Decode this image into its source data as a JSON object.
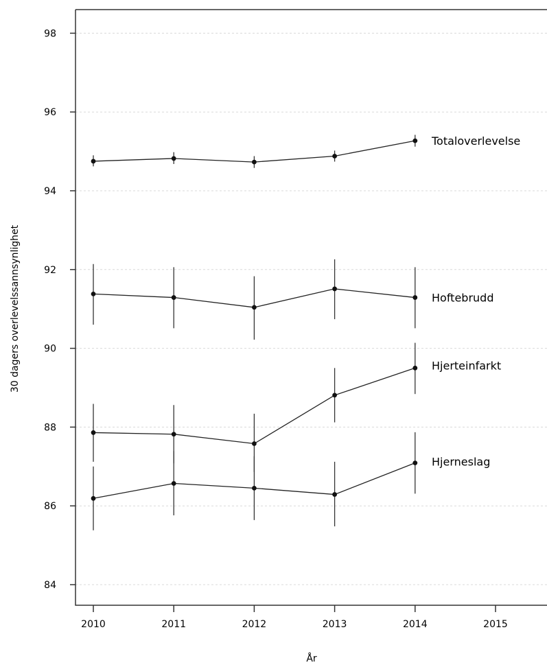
{
  "chart_data": {
    "type": "line",
    "title": "",
    "xlabel": "År",
    "ylabel": "30 dagers overlevelssannsynlighet",
    "xlim": [
      2009.77,
      2015.65
    ],
    "ylim": [
      83.6,
      99.4
    ],
    "x_ticks": [
      "2010",
      "2011",
      "2012",
      "2013",
      "2014",
      "2015"
    ],
    "y_ticks": [
      "84",
      "86",
      "88",
      "90",
      "92",
      "94",
      "96",
      "98"
    ],
    "grid": "horizontal dotted",
    "legend": "direct labels at right end of series",
    "series": [
      {
        "name": "Totaloverlevelse",
        "x": [
          2010,
          2011,
          2012,
          2013,
          2014
        ],
        "values": [
          94.75,
          94.82,
          94.73,
          94.88,
          95.27
        ],
        "lower": [
          94.62,
          94.68,
          94.58,
          94.74,
          95.12
        ],
        "upper": [
          94.9,
          94.98,
          94.88,
          95.02,
          95.42
        ]
      },
      {
        "name": "Hoftebrudd",
        "x": [
          2010,
          2011,
          2012,
          2013,
          2014
        ],
        "values": [
          91.38,
          91.29,
          91.04,
          91.51,
          91.29
        ],
        "lower": [
          90.6,
          90.51,
          90.22,
          90.74,
          90.51
        ],
        "upper": [
          92.14,
          92.06,
          91.83,
          92.26,
          92.06
        ]
      },
      {
        "name": "Hjerteinfarkt",
        "x": [
          2010,
          2011,
          2012,
          2013,
          2014
        ],
        "values": [
          87.86,
          87.82,
          87.58,
          88.81,
          89.5
        ],
        "lower": [
          87.12,
          87.08,
          86.86,
          88.12,
          88.84
        ],
        "upper": [
          88.59,
          88.56,
          88.34,
          89.5,
          90.14
        ]
      },
      {
        "name": "Hjerneslag",
        "x": [
          2010,
          2011,
          2012,
          2013,
          2014
        ],
        "values": [
          86.19,
          86.57,
          86.45,
          86.29,
          87.09
        ],
        "lower": [
          85.38,
          85.76,
          85.64,
          85.48,
          86.31
        ],
        "upper": [
          87.0,
          87.39,
          87.26,
          87.12,
          87.87
        ]
      }
    ]
  }
}
